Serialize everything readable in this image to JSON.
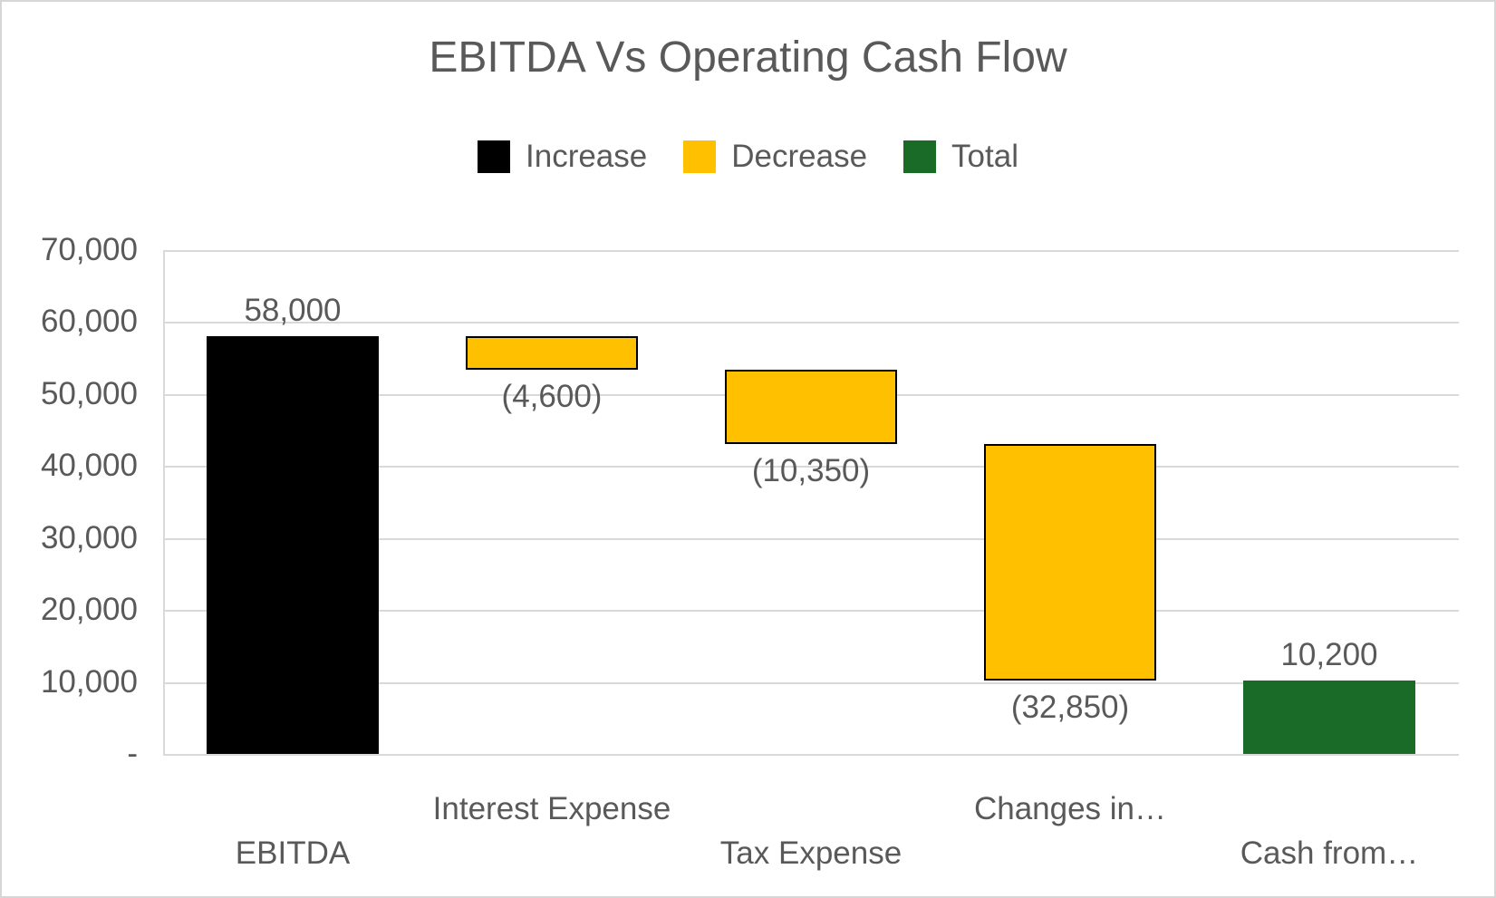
{
  "chart": {
    "title": "EBITDA Vs Operating Cash Flow",
    "legend": [
      {
        "label": "Increase",
        "role": "increase"
      },
      {
        "label": "Decrease",
        "role": "decrease"
      },
      {
        "label": "Total",
        "role": "total"
      }
    ],
    "colors": {
      "increase": "#000000",
      "decrease": "#FFC000",
      "total": "#1B6B28",
      "bar_border": "#000000",
      "grid": "#D9D9D9",
      "text": "#595959"
    },
    "y_axis": {
      "tick_labels": [
        "70,000",
        "60,000",
        "50,000",
        "40,000",
        "30,000",
        "20,000",
        "10,000",
        "-"
      ],
      "min": 0,
      "max": 70000,
      "step": 10000
    }
  },
  "chart_data": {
    "type": "bar",
    "subtype": "waterfall",
    "title": "EBITDA Vs Operating Cash Flow",
    "categories": [
      "EBITDA",
      "Interest Expense",
      "Tax Expense",
      "Changes in…",
      "Cash from…"
    ],
    "points": [
      {
        "category": "EBITDA",
        "value": 58000,
        "label": "58,000",
        "role": "increase",
        "start": 0,
        "end": 58000
      },
      {
        "category": "Interest Expense",
        "value": -4600,
        "label": "(4,600)",
        "role": "decrease",
        "start": 58000,
        "end": 53400
      },
      {
        "category": "Tax Expense",
        "value": -10350,
        "label": "(10,350)",
        "role": "decrease",
        "start": 53400,
        "end": 43050
      },
      {
        "category": "Changes in…",
        "value": -32850,
        "label": "(32,850)",
        "role": "decrease",
        "start": 43050,
        "end": 10200
      },
      {
        "category": "Cash from…",
        "value": 10200,
        "label": "10,200",
        "role": "total",
        "start": 0,
        "end": 10200
      }
    ],
    "ylim": [
      0,
      70000
    ],
    "grid": true,
    "legend_position": "top",
    "xlabel": "",
    "ylabel": ""
  }
}
